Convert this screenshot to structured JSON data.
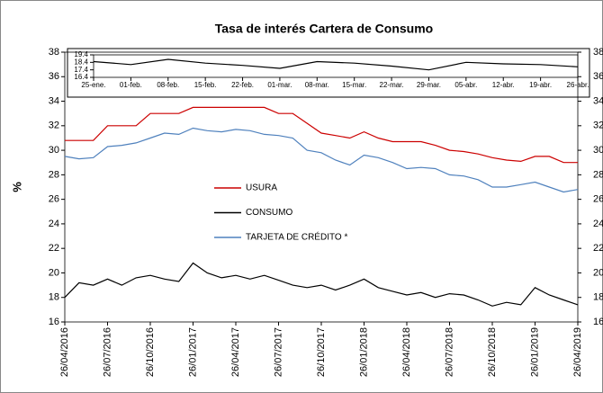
{
  "chart_data": [
    {
      "type": "line",
      "title": "Tasa de interés Cartera de Consumo",
      "ylabel": "%",
      "categories": [
        "26/04/2016",
        null,
        null,
        "26/07/2016",
        null,
        null,
        "26/10/2016",
        null,
        null,
        "26/01/2017",
        null,
        null,
        "26/04/2017",
        null,
        null,
        "26/07/2017",
        null,
        null,
        "26/10/2017",
        null,
        null,
        "26/01/2018",
        null,
        null,
        "26/04/2018",
        null,
        null,
        "26/07/2018",
        null,
        null,
        "26/10/2018",
        null,
        null,
        "26/01/2019",
        null,
        null,
        "26/04/2019"
      ],
      "series": [
        {
          "name": "USURA",
          "color": "#cc0000",
          "values": [
            30.8,
            30.8,
            30.8,
            32.0,
            32.0,
            32.0,
            33.0,
            33.0,
            33.0,
            33.5,
            33.5,
            33.5,
            33.5,
            33.5,
            33.5,
            33.0,
            33.0,
            32.2,
            31.4,
            31.2,
            31.0,
            31.5,
            31.0,
            30.7,
            30.7,
            30.7,
            30.4,
            30.0,
            29.9,
            29.7,
            29.4,
            29.2,
            29.1,
            29.5,
            29.5,
            29.0,
            29.0
          ]
        },
        {
          "name": "CONSUMO",
          "color": "#000000",
          "values": [
            18.0,
            19.2,
            19.0,
            19.5,
            19.0,
            19.6,
            19.8,
            19.5,
            19.3,
            20.8,
            20.0,
            19.6,
            19.8,
            19.5,
            19.8,
            19.4,
            19.0,
            18.8,
            19.0,
            18.6,
            19.0,
            19.5,
            18.8,
            18.5,
            18.2,
            18.4,
            18.0,
            18.3,
            18.2,
            17.8,
            17.3,
            17.6,
            17.4,
            18.8,
            18.2,
            17.8,
            17.4
          ]
        },
        {
          "name": "TARJETA DE CRÉDITO *",
          "color": "#4f81bd",
          "values": [
            29.5,
            29.3,
            29.4,
            30.3,
            30.4,
            30.6,
            31.0,
            31.4,
            31.3,
            31.8,
            31.6,
            31.5,
            31.7,
            31.6,
            31.3,
            31.2,
            31.0,
            30.0,
            29.8,
            29.2,
            28.8,
            29.6,
            29.4,
            29.0,
            28.5,
            28.6,
            28.5,
            28.0,
            27.9,
            27.6,
            27.0,
            27.0,
            27.2,
            27.4,
            27.0,
            26.6,
            26.8
          ]
        }
      ],
      "ylim": [
        16,
        38
      ],
      "yticks": [
        16,
        18,
        20,
        22,
        24,
        26,
        28,
        30,
        32,
        34,
        36,
        38
      ]
    },
    {
      "type": "line",
      "categories": [
        "25-ene.",
        "01-feb.",
        "08-feb.",
        "15-feb.",
        "22-feb.",
        "01-mar.",
        "08-mar.",
        "15-mar.",
        "22-mar.",
        "29-mar.",
        "05-abr.",
        "12-abr.",
        "19-abr.",
        "26-abr."
      ],
      "series": [
        {
          "color": "#000000",
          "values": [
            18.5,
            18.1,
            18.8,
            18.3,
            18.0,
            17.6,
            18.5,
            18.3,
            17.9,
            17.4,
            18.4,
            18.2,
            18.1,
            17.8
          ]
        }
      ],
      "ylim": [
        16.4,
        19.4
      ],
      "yticks": [
        16.4,
        17.4,
        18.4,
        19.4
      ]
    }
  ]
}
